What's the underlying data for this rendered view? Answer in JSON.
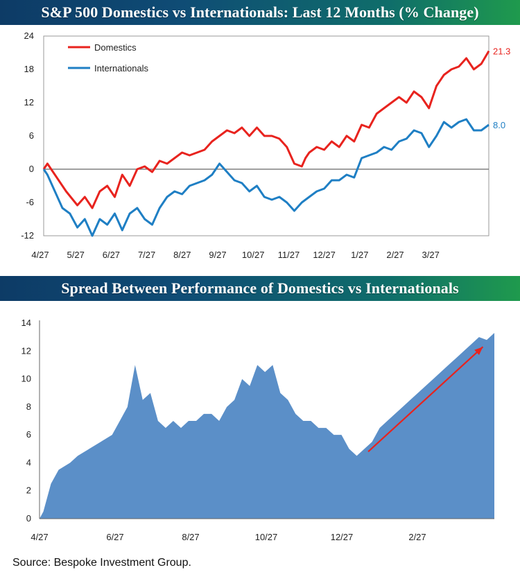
{
  "colors": {
    "domestics": "#e8231e",
    "internationals": "#1f7fc4",
    "area": "#5b8fc8",
    "arrow": "#e8231e",
    "axis": "#666666"
  },
  "source": "Source:  Bespoke Investment Group.",
  "chart_data": [
    {
      "type": "line",
      "title": "S&P 500 Domestics vs Internationals: Last 12 Months (% Change)",
      "x_tick_labels": [
        "4/27",
        "5/27",
        "6/27",
        "7/27",
        "8/27",
        "9/27",
        "10/27",
        "11/27",
        "12/27",
        "1/27",
        "2/27",
        "3/27"
      ],
      "y_ticks": [
        24,
        18,
        12,
        6,
        0,
        -6,
        -12
      ],
      "ylim": [
        -12,
        24
      ],
      "xlim": [
        0,
        11.9
      ],
      "legend": "top-left",
      "series": [
        {
          "name": "Domestics",
          "end_label": "21.3",
          "x": [
            0,
            0.1,
            0.3,
            0.6,
            0.9,
            1.1,
            1.3,
            1.5,
            1.7,
            1.9,
            2.1,
            2.3,
            2.5,
            2.7,
            2.9,
            3.1,
            3.3,
            3.5,
            3.7,
            3.9,
            4.1,
            4.3,
            4.5,
            4.7,
            4.9,
            5.1,
            5.3,
            5.5,
            5.7,
            5.9,
            6.1,
            6.3,
            6.5,
            6.7,
            6.9,
            7.0,
            7.1,
            7.3,
            7.5,
            7.7,
            7.9,
            8.1,
            8.3,
            8.5,
            8.7,
            8.9,
            9.1,
            9.3,
            9.5,
            9.7,
            9.9,
            10.1,
            10.3,
            10.5,
            10.7,
            10.9,
            11.1,
            11.3,
            11.5,
            11.7,
            11.9
          ],
          "values": [
            0,
            1,
            -1,
            -4,
            -6.5,
            -5,
            -7,
            -4,
            -3,
            -5,
            -1,
            -3,
            0,
            0.5,
            -0.5,
            1.5,
            1,
            2,
            3,
            2.5,
            3,
            3.5,
            5,
            6,
            7,
            6.5,
            7.5,
            6,
            7.5,
            6,
            6,
            5.5,
            4,
            1,
            0.5,
            2,
            3,
            4,
            3.5,
            5,
            4,
            6,
            5,
            8,
            7.5,
            10,
            11,
            12,
            13,
            12,
            14,
            13,
            11,
            15,
            17,
            18,
            18.5,
            20,
            18,
            19,
            21.3
          ]
        },
        {
          "name": "Internationals",
          "end_label": "8.0",
          "x": [
            0,
            0.1,
            0.3,
            0.5,
            0.7,
            0.9,
            1.1,
            1.3,
            1.5,
            1.7,
            1.9,
            2.1,
            2.3,
            2.5,
            2.7,
            2.9,
            3.1,
            3.3,
            3.5,
            3.7,
            3.9,
            4.1,
            4.3,
            4.5,
            4.7,
            4.9,
            5.1,
            5.3,
            5.5,
            5.7,
            5.9,
            6.1,
            6.3,
            6.5,
            6.7,
            6.9,
            7.1,
            7.3,
            7.5,
            7.7,
            7.9,
            8.1,
            8.3,
            8.5,
            8.7,
            8.9,
            9.1,
            9.3,
            9.5,
            9.7,
            9.9,
            10.1,
            10.3,
            10.5,
            10.7,
            10.9,
            11.1,
            11.3,
            11.5,
            11.7,
            11.9
          ],
          "values": [
            0,
            -1,
            -4,
            -7,
            -8,
            -10.5,
            -9,
            -12,
            -9,
            -10,
            -8,
            -11,
            -8,
            -7,
            -9,
            -10,
            -7,
            -5,
            -4,
            -4.5,
            -3,
            -2.5,
            -2,
            -1,
            1,
            -0.5,
            -2,
            -2.5,
            -4,
            -3,
            -5,
            -5.5,
            -5,
            -6,
            -7.5,
            -6,
            -5,
            -4,
            -3.5,
            -2,
            -2,
            -1,
            -1.5,
            2,
            2.5,
            3,
            4,
            3.5,
            5,
            5.5,
            7,
            6.5,
            4,
            6,
            8.5,
            7.5,
            8.5,
            9,
            7,
            7,
            8
          ]
        }
      ]
    },
    {
      "type": "area",
      "title": "Spread Between Performance of Domestics vs Internationals",
      "x_tick_labels": [
        "4/27",
        "6/27",
        "8/27",
        "10/27",
        "12/27",
        "2/27"
      ],
      "y_ticks": [
        14,
        12,
        10,
        8,
        6,
        4,
        2,
        0
      ],
      "ylim": [
        0,
        14
      ],
      "xlim": [
        0,
        11.9
      ],
      "legend": "none",
      "series": [
        {
          "name": "",
          "x": [
            0,
            0.1,
            0.2,
            0.3,
            0.5,
            0.8,
            1.0,
            1.3,
            1.6,
            1.9,
            2.1,
            2.3,
            2.5,
            2.7,
            2.9,
            3.1,
            3.3,
            3.5,
            3.7,
            3.9,
            4.1,
            4.3,
            4.5,
            4.7,
            4.9,
            5.1,
            5.3,
            5.5,
            5.7,
            5.9,
            6.1,
            6.3,
            6.5,
            6.7,
            6.9,
            7.1,
            7.3,
            7.5,
            7.7,
            7.9,
            8.1,
            8.3,
            8.5,
            8.7,
            8.9,
            9.1,
            9.3,
            9.5,
            9.7,
            9.9,
            10.1,
            10.3,
            10.5,
            10.7,
            10.9,
            11.1,
            11.3,
            11.5,
            11.7,
            11.9
          ],
          "values": [
            0,
            0.5,
            1.5,
            2.5,
            3.5,
            4,
            4.5,
            5,
            5.5,
            6,
            7,
            8,
            11,
            8.5,
            9,
            7,
            6.5,
            7,
            6.5,
            7,
            7,
            7.5,
            7.5,
            7,
            8,
            8.5,
            10,
            9.5,
            11,
            10.5,
            11,
            9,
            8.5,
            7.5,
            7,
            7,
            6.5,
            6.5,
            6,
            6,
            5,
            4.5,
            5,
            5.5,
            6.5,
            7,
            7.5,
            8,
            8.5,
            9,
            9.5,
            10,
            10.5,
            11,
            11.5,
            12,
            12.5,
            13,
            12.8,
            13.3
          ]
        }
      ],
      "annotations": [
        {
          "type": "arrow",
          "from": {
            "x": 8.6,
            "y": 4.8
          },
          "to": {
            "x": 11.6,
            "y": 12.3
          }
        }
      ]
    }
  ]
}
